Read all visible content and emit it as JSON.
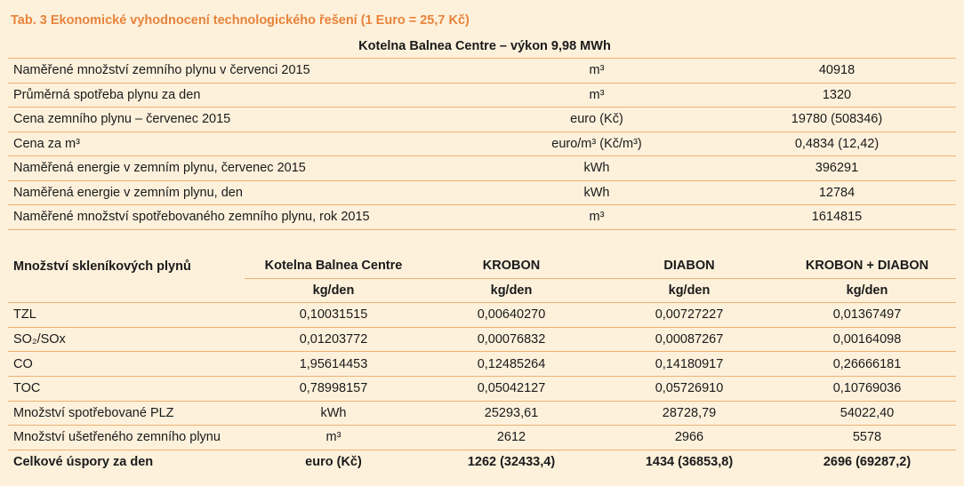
{
  "caption": "Tab. 3 Ekonomické vyhodnocení technologického řešení (1 Euro = 25,7 Kč)",
  "table1": {
    "title": "Kotelna Balnea Centre – výkon 9,98 MWh",
    "rows": [
      {
        "label": "Naměřené množství zemního plynu v červenci 2015",
        "unit": "m³",
        "value": "40918"
      },
      {
        "label": "Průměrná spotřeba plynu za den",
        "unit": "m³",
        "value": "1320"
      },
      {
        "label": "Cena zemního plynu – červenec 2015",
        "unit": "euro (Kč)",
        "value": "19780 (508346)"
      },
      {
        "label": "Cena za m³",
        "unit": "euro/m³ (Kč/m³)",
        "value": "0,4834 (12,42)"
      },
      {
        "label": "Naměřená energie v zemním plynu, červenec 2015",
        "unit": "kWh",
        "value": "396291"
      },
      {
        "label": "Naměřená energie v zemním plynu, den",
        "unit": "kWh",
        "value": "12784"
      },
      {
        "label": "Naměřené množství spotřebovaného zemního plynu, rok 2015",
        "unit": "m³",
        "value": "1614815"
      }
    ]
  },
  "table2": {
    "header": [
      "Množství skleníkových plynů",
      "Kotelna Balnea Centre",
      "KROBON",
      "DIABON",
      "KROBON + DIABON"
    ],
    "units": [
      "kg/den",
      "kg/den",
      "kg/den",
      "kg/den"
    ],
    "rows": [
      {
        "label": "TZL",
        "values": [
          "0,10031515",
          "0,00640270",
          "0,00727227",
          "0,01367497"
        ]
      },
      {
        "label": "SO₂/SOx",
        "values": [
          "0,01203772",
          "0,00076832",
          "0,00087267",
          "0,00164098"
        ]
      },
      {
        "label": "CO",
        "values": [
          "1,95614453",
          "0,12485264",
          "0,14180917",
          "0,26666181"
        ]
      },
      {
        "label": "TOC",
        "values": [
          "0,78998157",
          "0,05042127",
          "0,05726910",
          "0,10769036"
        ]
      },
      {
        "label": "Množství spotřebované PLZ",
        "values": [
          "kWh",
          "25293,61",
          "28728,79",
          "54022,40"
        ]
      },
      {
        "label": "Množství ušetřeného zemního plynu",
        "values": [
          "m³",
          "2612",
          "2966",
          "5578"
        ]
      },
      {
        "label": "Celkové úspory za den",
        "values": [
          "euro (Kč)",
          "1262 (32433,4)",
          "1434 (36853,8)",
          "2696 (69287,2)"
        ]
      }
    ]
  }
}
